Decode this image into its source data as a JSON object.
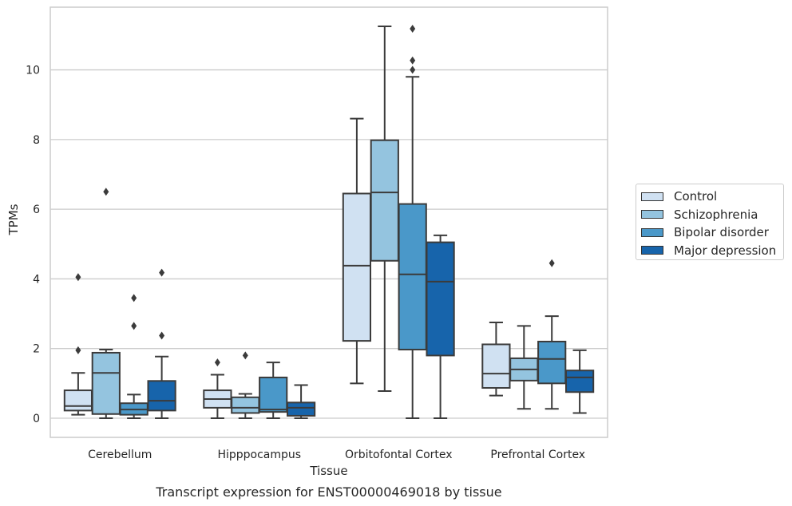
{
  "chart_data": {
    "type": "box",
    "title": "Transcript expression for ENST00000469018 by tissue",
    "xlabel": "Tissue",
    "ylabel": "TPMs",
    "ylim": [
      -0.55,
      11.8
    ],
    "yticks": [
      0,
      2,
      4,
      6,
      8,
      10
    ],
    "grid": "horizontal",
    "legend_position": "right",
    "categories": [
      "Cerebellum",
      "Hipppocampus",
      "Orbitofontal Cortex",
      "Prefrontal Cortex"
    ],
    "series": [
      {
        "name": "Control",
        "color": "#d0e1f2",
        "boxes": [
          {
            "whislo": 0.1,
            "q1": 0.22,
            "med": 0.35,
            "q3": 0.8,
            "whishi": 1.3,
            "fliers": [
              1.95,
              4.05
            ]
          },
          {
            "whislo": 0.0,
            "q1": 0.3,
            "med": 0.55,
            "q3": 0.8,
            "whishi": 1.25,
            "fliers": [
              1.6
            ]
          },
          {
            "whislo": 1.0,
            "q1": 2.22,
            "med": 4.38,
            "q3": 6.45,
            "whishi": 8.6,
            "fliers": []
          },
          {
            "whislo": 0.65,
            "q1": 0.87,
            "med": 1.28,
            "q3": 2.12,
            "whishi": 2.75,
            "fliers": []
          }
        ]
      },
      {
        "name": "Schizophrenia",
        "color": "#94c4df",
        "boxes": [
          {
            "whislo": 0.0,
            "q1": 0.12,
            "med": 1.3,
            "q3": 1.88,
            "whishi": 1.97,
            "fliers": [
              6.5
            ]
          },
          {
            "whislo": 0.0,
            "q1": 0.15,
            "med": 0.3,
            "q3": 0.6,
            "whishi": 0.7,
            "fliers": [
              1.8
            ]
          },
          {
            "whislo": 0.78,
            "q1": 4.52,
            "med": 6.48,
            "q3": 7.98,
            "whishi": 11.25,
            "fliers": []
          },
          {
            "whislo": 0.27,
            "q1": 1.08,
            "med": 1.4,
            "q3": 1.72,
            "whishi": 2.65,
            "fliers": []
          }
        ]
      },
      {
        "name": "Bipolar disorder",
        "color": "#4a98c9",
        "boxes": [
          {
            "whislo": 0.0,
            "q1": 0.1,
            "med": 0.25,
            "q3": 0.43,
            "whishi": 0.68,
            "fliers": [
              2.65,
              3.45
            ]
          },
          {
            "whislo": 0.0,
            "q1": 0.18,
            "med": 0.25,
            "q3": 1.17,
            "whishi": 1.6,
            "fliers": []
          },
          {
            "whislo": 0.0,
            "q1": 1.97,
            "med": 4.13,
            "q3": 6.15,
            "whishi": 9.8,
            "fliers": [
              10.0,
              10.27,
              11.18
            ]
          },
          {
            "whislo": 0.27,
            "q1": 1.0,
            "med": 1.7,
            "q3": 2.2,
            "whishi": 2.93,
            "fliers": [
              4.45
            ]
          }
        ]
      },
      {
        "name": "Major depression",
        "color": "#1764ab",
        "boxes": [
          {
            "whislo": 0.0,
            "q1": 0.22,
            "med": 0.5,
            "q3": 1.07,
            "whishi": 1.77,
            "fliers": [
              2.37,
              4.18
            ]
          },
          {
            "whislo": 0.0,
            "q1": 0.07,
            "med": 0.3,
            "q3": 0.45,
            "whishi": 0.95,
            "fliers": []
          },
          {
            "whislo": 0.0,
            "q1": 1.8,
            "med": 3.92,
            "q3": 5.05,
            "whishi": 5.25,
            "fliers": []
          },
          {
            "whislo": 0.15,
            "q1": 0.75,
            "med": 1.17,
            "q3": 1.37,
            "whishi": 1.95,
            "fliers": []
          }
        ]
      }
    ]
  }
}
